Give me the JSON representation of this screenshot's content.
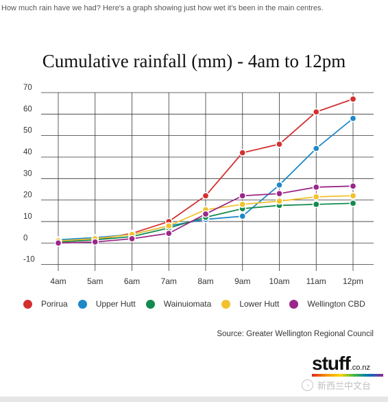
{
  "intro_text": "How much rain have we had? Here's a graph showing just how wet it's been in the main centres.",
  "source_text": "Source: Greater Wellington Regional Council",
  "logo": {
    "main": "stuff",
    "suffix": ".co.nz"
  },
  "watermark": "新西兰中文台",
  "chart_data": {
    "type": "line",
    "title": "Cumulative rainfall (mm) - 4am to 12pm",
    "xlabel": "",
    "ylabel": "",
    "categories": [
      "4am",
      "5am",
      "6am",
      "7am",
      "8am",
      "9am",
      "10am",
      "11am",
      "12pm"
    ],
    "yticks": [
      -10,
      0,
      10,
      20,
      30,
      40,
      50,
      60,
      70
    ],
    "ylim": [
      -13,
      70
    ],
    "grid": true,
    "legend_position": "bottom",
    "series": [
      {
        "name": "Porirua",
        "color": "#d32f2f",
        "values": [
          0.5,
          1.5,
          4.5,
          10,
          22,
          42,
          46,
          61,
          67
        ]
      },
      {
        "name": "Upper Hutt",
        "color": "#1e88c8",
        "values": [
          1.5,
          2.5,
          4,
          8,
          11,
          12.5,
          27,
          44,
          58
        ]
      },
      {
        "name": "Wainuiomata",
        "color": "#138a4e",
        "values": [
          0.5,
          1.5,
          3,
          7,
          12,
          16,
          17.5,
          18,
          18.5
        ]
      },
      {
        "name": "Lower Hutt",
        "color": "#f2c12e",
        "values": [
          1,
          2,
          4,
          8,
          15.5,
          18,
          19.5,
          21.5,
          22
        ]
      },
      {
        "name": "Wellington CBD",
        "color": "#9b2789",
        "values": [
          0,
          0.5,
          2,
          4.5,
          13.5,
          22,
          23,
          26,
          26.5
        ]
      }
    ]
  }
}
